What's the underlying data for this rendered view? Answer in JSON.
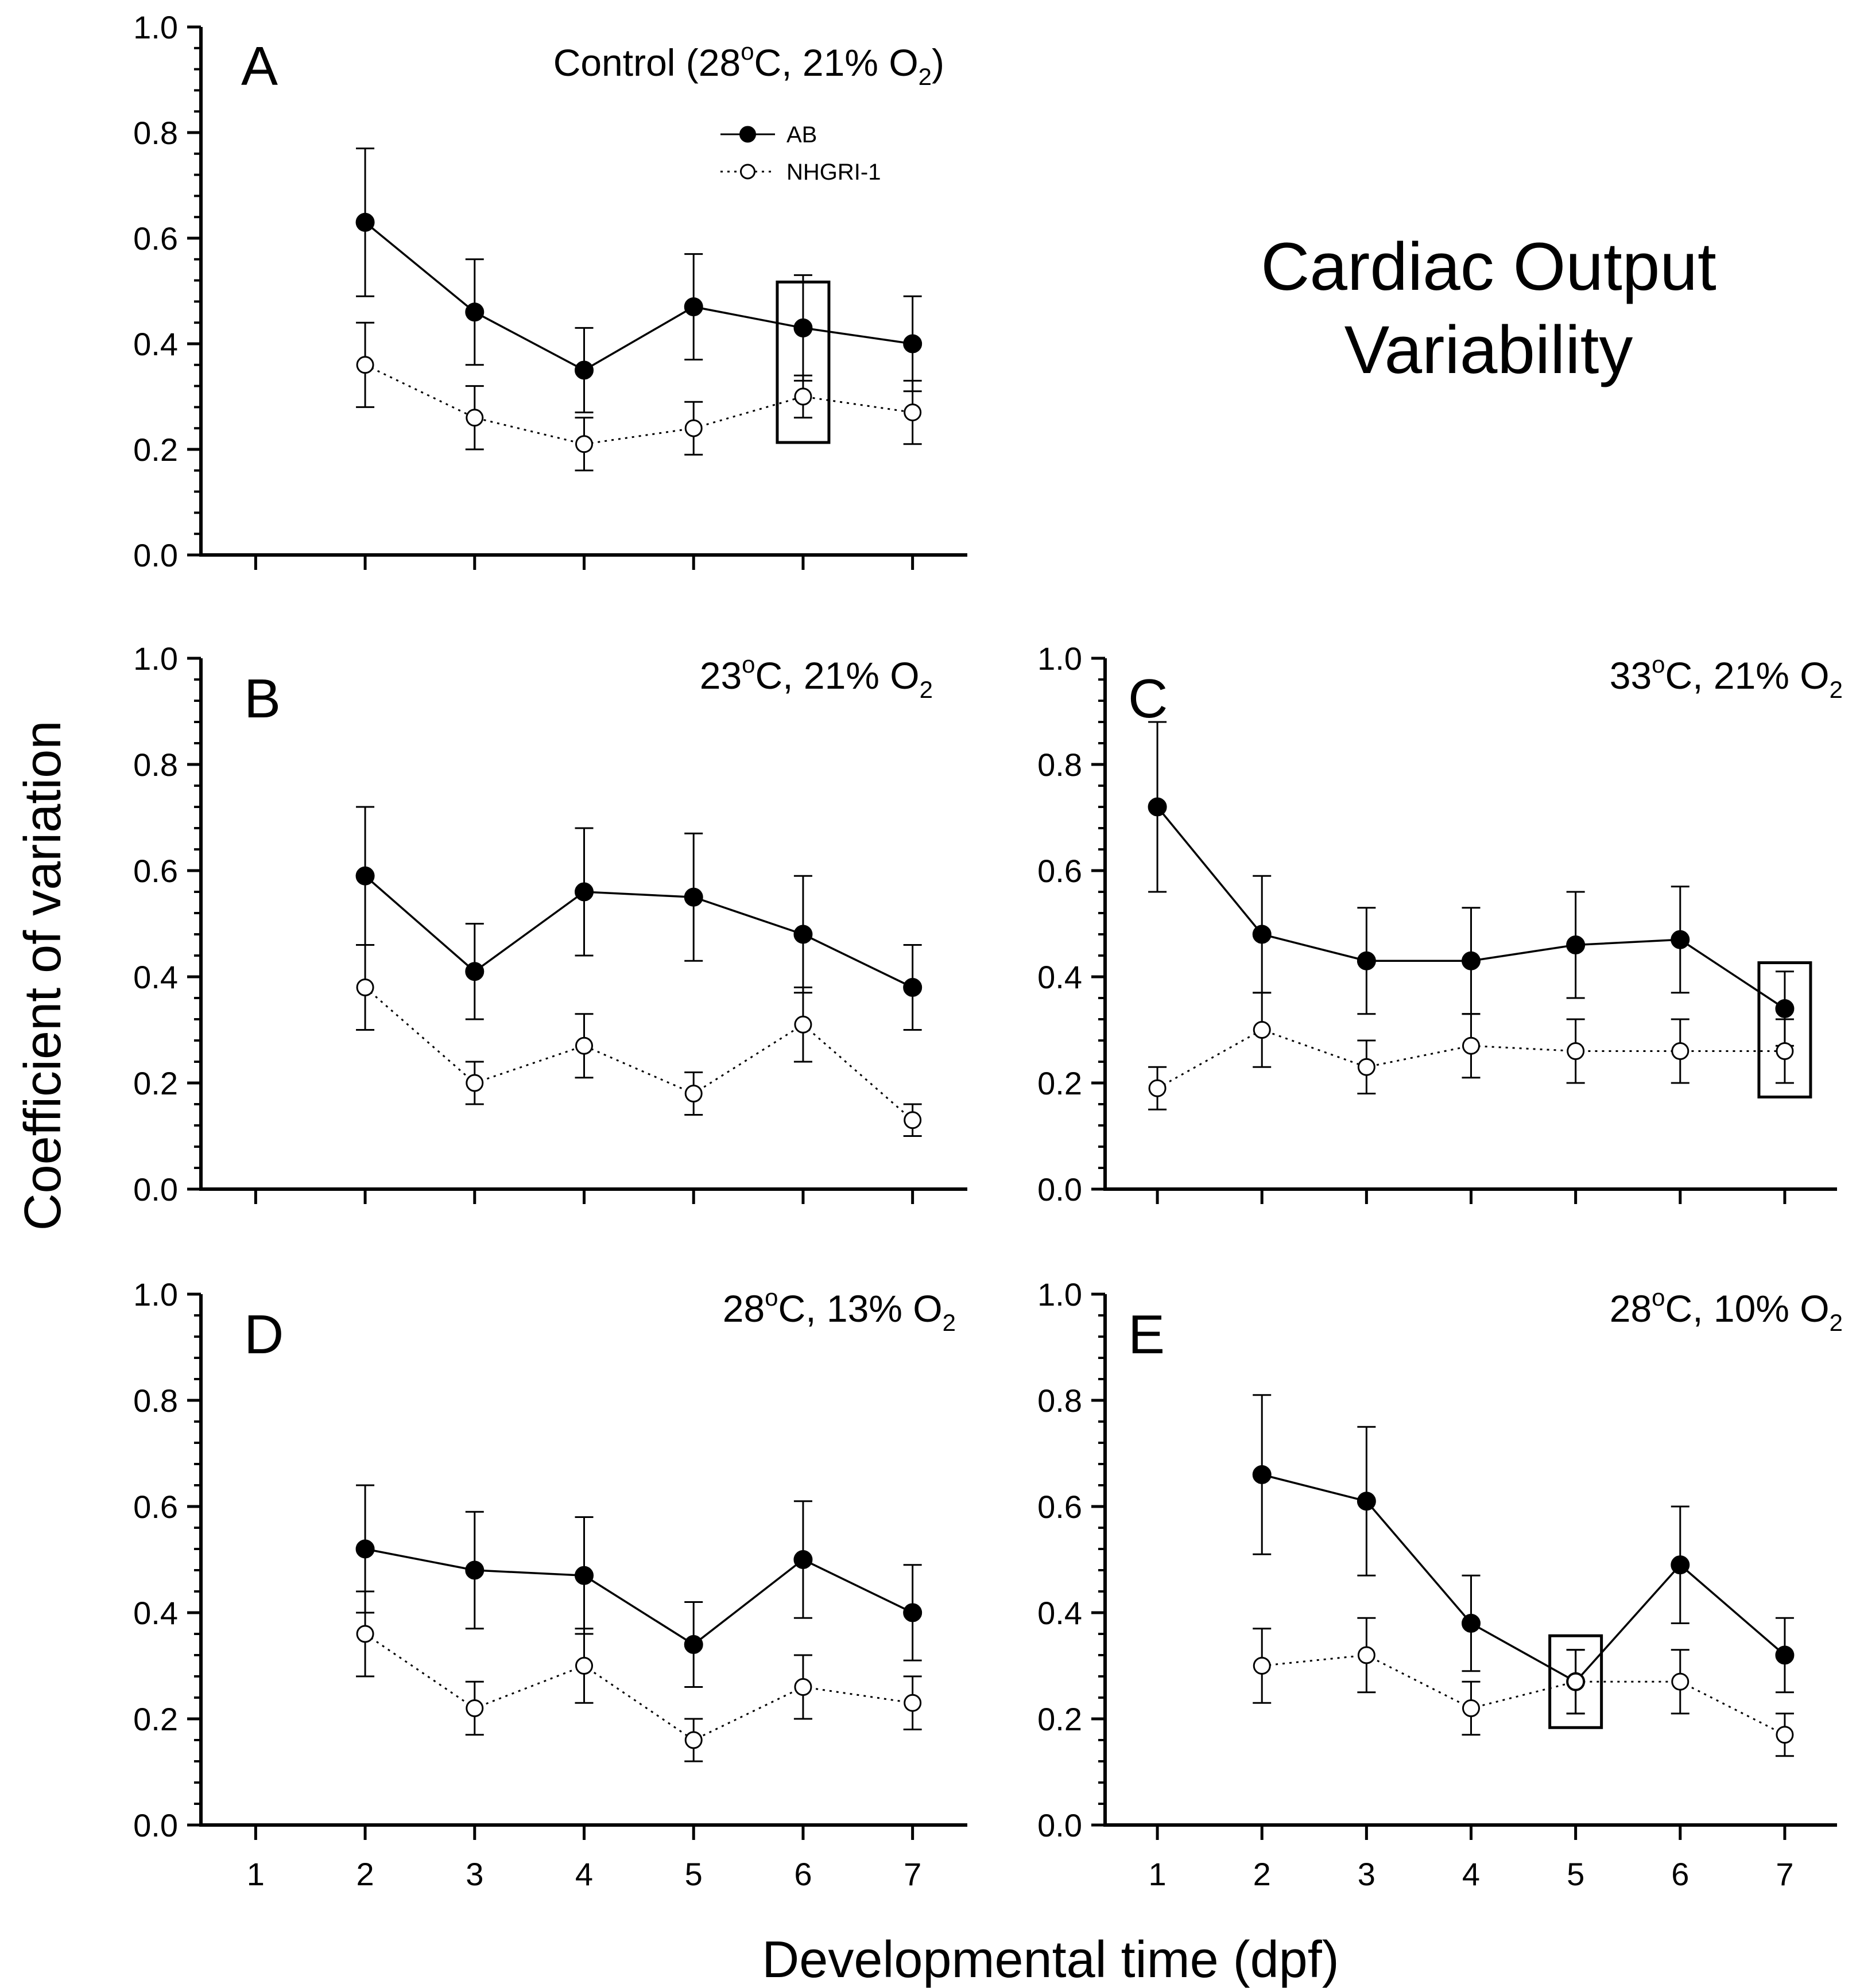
{
  "figure": {
    "title_line1": "Cardiac Output",
    "title_line2": "Variability",
    "ylabel": "Coefficient of variation",
    "xlabel": "Developmental time (dpf)",
    "legend": [
      {
        "label": "AB",
        "style": "filled-solid"
      },
      {
        "label": "NHGRI-1",
        "style": "open-dotted"
      }
    ]
  },
  "chart_data": [
    {
      "type": "line",
      "panel": "A",
      "condition": {
        "main": "Control (28",
        "sup": "o",
        "mid": "C, 21% O",
        "sub": "2",
        "tail": ")"
      },
      "x": [
        2,
        3,
        4,
        5,
        6,
        7
      ],
      "xlim": [
        0.5,
        7.5
      ],
      "ylim": [
        0,
        1
      ],
      "yticks": [
        "0.0",
        "0.2",
        "0.4",
        "0.6",
        "0.8",
        "1.0"
      ],
      "xticks": [],
      "series": [
        {
          "name": "AB",
          "values": [
            0.63,
            0.46,
            0.35,
            0.47,
            0.43,
            0.4
          ],
          "errors": [
            0.14,
            0.1,
            0.08,
            0.1,
            0.1,
            0.09
          ]
        },
        {
          "name": "NHGRI-1",
          "values": [
            0.36,
            0.26,
            0.21,
            0.24,
            0.3,
            0.27
          ],
          "errors": [
            0.08,
            0.06,
            0.05,
            0.05,
            0.04,
            0.06
          ]
        }
      ],
      "highlight_x": [
        6
      ]
    },
    {
      "type": "line",
      "panel": "B",
      "condition": {
        "main": "23",
        "sup": "o",
        "mid": "C, 21% O",
        "sub": "2",
        "tail": ""
      },
      "x": [
        2,
        3,
        4,
        5,
        6,
        7
      ],
      "xlim": [
        0.5,
        7.5
      ],
      "ylim": [
        0,
        1
      ],
      "yticks": [
        "0.0",
        "0.2",
        "0.4",
        "0.6",
        "0.8",
        "1.0"
      ],
      "xticks": [],
      "series": [
        {
          "name": "AB",
          "values": [
            0.59,
            0.41,
            0.56,
            0.55,
            0.48,
            0.38
          ],
          "errors": [
            0.13,
            0.09,
            0.12,
            0.12,
            0.11,
            0.08
          ]
        },
        {
          "name": "NHGRI-1",
          "values": [
            0.38,
            0.2,
            0.27,
            0.18,
            0.31,
            0.13
          ],
          "errors": [
            0.08,
            0.04,
            0.06,
            0.04,
            0.07,
            0.03
          ]
        }
      ],
      "highlight_x": []
    },
    {
      "type": "line",
      "panel": "C",
      "condition": {
        "main": "33",
        "sup": "o",
        "mid": "C, 21% O",
        "sub": "2",
        "tail": ""
      },
      "x": [
        1,
        2,
        3,
        4,
        5,
        6,
        7
      ],
      "xlim": [
        0.5,
        7.5
      ],
      "ylim": [
        0,
        1
      ],
      "yticks": [
        "0.0",
        "0.2",
        "0.4",
        "0.6",
        "0.8",
        "1.0"
      ],
      "xticks": [],
      "series": [
        {
          "name": "AB",
          "values": [
            0.72,
            0.48,
            0.43,
            0.43,
            0.46,
            0.47,
            0.34
          ],
          "errors": [
            0.16,
            0.11,
            0.1,
            0.1,
            0.1,
            0.1,
            0.07
          ]
        },
        {
          "name": "NHGRI-1",
          "values": [
            0.19,
            0.3,
            0.23,
            0.27,
            0.26,
            0.26,
            0.26
          ],
          "errors": [
            0.04,
            0.07,
            0.05,
            0.06,
            0.06,
            0.06,
            0.06
          ]
        }
      ],
      "highlight_x": [
        7
      ]
    },
    {
      "type": "line",
      "panel": "D",
      "condition": {
        "main": "28",
        "sup": "o",
        "mid": "C, 13% O",
        "sub": "2",
        "tail": ""
      },
      "x": [
        2,
        3,
        4,
        5,
        6,
        7
      ],
      "xlim": [
        0.5,
        7.5
      ],
      "ylim": [
        0,
        1
      ],
      "yticks": [
        "0.0",
        "0.2",
        "0.4",
        "0.6",
        "0.8",
        "1.0"
      ],
      "xticks": [
        "1",
        "2",
        "3",
        "4",
        "5",
        "6",
        "7"
      ],
      "series": [
        {
          "name": "AB",
          "values": [
            0.52,
            0.48,
            0.47,
            0.34,
            0.5,
            0.4
          ],
          "errors": [
            0.12,
            0.11,
            0.11,
            0.08,
            0.11,
            0.09
          ]
        },
        {
          "name": "NHGRI-1",
          "values": [
            0.36,
            0.22,
            0.3,
            0.16,
            0.26,
            0.23
          ],
          "errors": [
            0.08,
            0.05,
            0.07,
            0.04,
            0.06,
            0.05
          ]
        }
      ],
      "highlight_x": []
    },
    {
      "type": "line",
      "panel": "E",
      "condition": {
        "main": "28",
        "sup": "o",
        "mid": "C, 10% O",
        "sub": "2",
        "tail": ""
      },
      "x": [
        2,
        3,
        4,
        5,
        6,
        7
      ],
      "xlim": [
        0.5,
        7.5
      ],
      "ylim": [
        0,
        1
      ],
      "yticks": [
        "0.0",
        "0.2",
        "0.4",
        "0.6",
        "0.8",
        "1.0"
      ],
      "xticks": [
        "1",
        "2",
        "3",
        "4",
        "5",
        "6",
        "7"
      ],
      "series": [
        {
          "name": "AB",
          "values": [
            0.66,
            0.61,
            0.38,
            0.27,
            0.49,
            0.32
          ],
          "errors": [
            0.15,
            0.14,
            0.09,
            0.06,
            0.11,
            0.07
          ]
        },
        {
          "name": "NHGRI-1",
          "values": [
            0.3,
            0.32,
            0.22,
            0.27,
            0.27,
            0.17
          ],
          "errors": [
            0.07,
            0.07,
            0.05,
            0.06,
            0.06,
            0.04
          ]
        }
      ],
      "highlight_x": [
        5
      ]
    }
  ]
}
